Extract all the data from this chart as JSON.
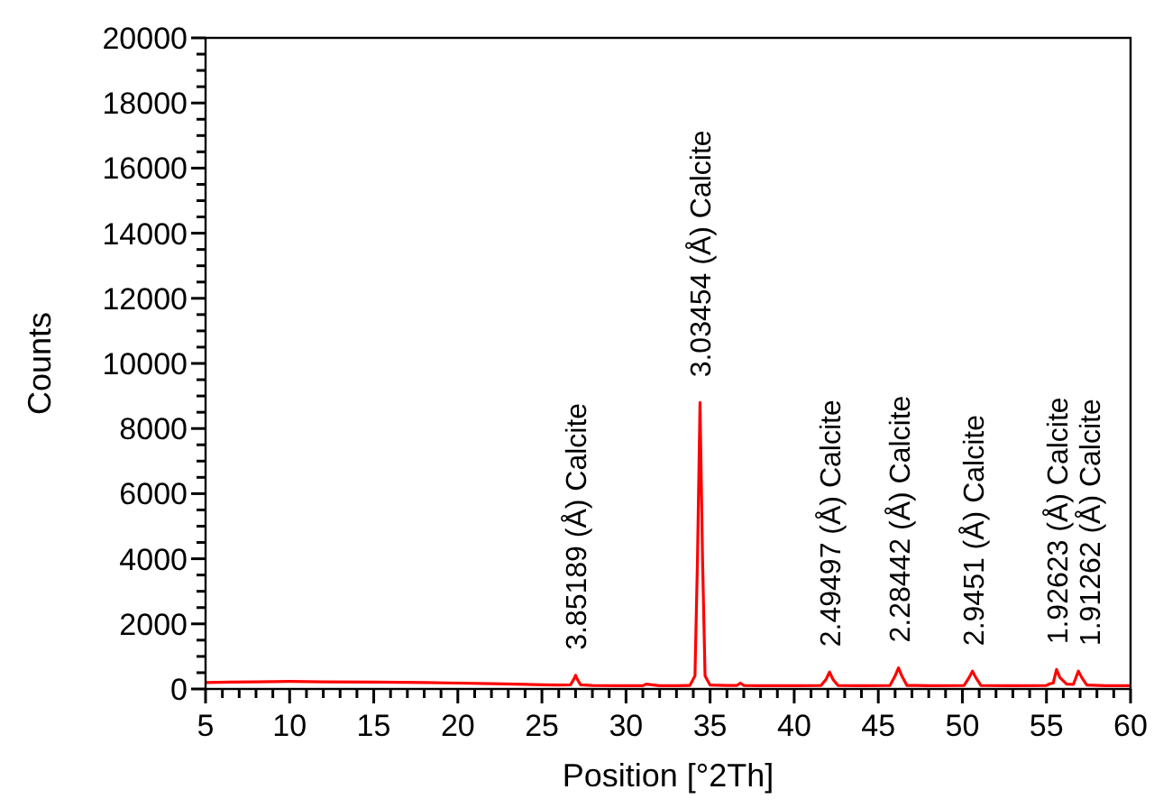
{
  "chart_data": {
    "type": "line",
    "xlabel": "Position [°2Th]",
    "ylabel": "Counts",
    "xlim": [
      5,
      60
    ],
    "ylim": [
      0,
      20000
    ],
    "xticks": [
      5,
      {
        "value": 6,
        "label": null
      },
      {
        "value": 7,
        "label": null
      },
      {
        "value": 8,
        "label": null
      },
      {
        "value": 9,
        "label": null
      },
      10,
      {
        "value": 11,
        "label": null
      },
      {
        "value": 12,
        "label": null
      },
      {
        "value": 13,
        "label": null
      },
      {
        "value": 14,
        "label": null
      },
      15,
      {
        "value": 16,
        "label": null
      },
      {
        "value": 17,
        "label": null
      },
      {
        "value": 18,
        "label": null
      },
      {
        "value": 19,
        "label": null
      },
      20,
      {
        "value": 21,
        "label": null
      },
      {
        "value": 22,
        "label": null
      },
      {
        "value": 23,
        "label": null
      },
      {
        "value": 24,
        "label": null
      },
      25,
      {
        "value": 26,
        "label": null
      },
      {
        "value": 27,
        "label": null
      },
      {
        "value": 28,
        "label": null
      },
      {
        "value": 29,
        "label": null
      },
      30,
      {
        "value": 31,
        "label": null
      },
      {
        "value": 32,
        "label": null
      },
      {
        "value": 33,
        "label": null
      },
      {
        "value": 34,
        "label": null
      },
      35,
      {
        "value": 36,
        "label": null
      },
      {
        "value": 37,
        "label": null
      },
      {
        "value": 38,
        "label": null
      },
      {
        "value": 39,
        "label": null
      },
      40,
      {
        "value": 41,
        "label": null
      },
      {
        "value": 42,
        "label": null
      },
      {
        "value": 43,
        "label": null
      },
      {
        "value": 44,
        "label": null
      },
      45,
      {
        "value": 46,
        "label": null
      },
      {
        "value": 47,
        "label": null
      },
      {
        "value": 48,
        "label": null
      },
      {
        "value": 49,
        "label": null
      },
      50,
      {
        "value": 51,
        "label": null
      },
      {
        "value": 52,
        "label": null
      },
      {
        "value": 53,
        "label": null
      },
      {
        "value": 54,
        "label": null
      },
      55,
      {
        "value": 56,
        "label": null
      },
      {
        "value": 57,
        "label": null
      },
      {
        "value": 58,
        "label": null
      },
      {
        "value": 59,
        "label": null
      },
      60
    ],
    "yticks": [
      0,
      {
        "value": 500,
        "label": null
      },
      {
        "value": 1000,
        "label": null
      },
      {
        "value": 1500,
        "label": null
      },
      2000,
      {
        "value": 2500,
        "label": null
      },
      {
        "value": 3000,
        "label": null
      },
      {
        "value": 3500,
        "label": null
      },
      4000,
      {
        "value": 4500,
        "label": null
      },
      {
        "value": 5000,
        "label": null
      },
      {
        "value": 5500,
        "label": null
      },
      6000,
      {
        "value": 6500,
        "label": null
      },
      {
        "value": 7000,
        "label": null
      },
      {
        "value": 7500,
        "label": null
      },
      8000,
      {
        "value": 8500,
        "label": null
      },
      {
        "value": 9000,
        "label": null
      },
      {
        "value": 9500,
        "label": null
      },
      10000,
      {
        "value": 10500,
        "label": null
      },
      {
        "value": 11000,
        "label": null
      },
      {
        "value": 11500,
        "label": null
      },
      12000,
      {
        "value": 12500,
        "label": null
      },
      {
        "value": 13000,
        "label": null
      },
      {
        "value": 13500,
        "label": null
      },
      14000,
      {
        "value": 14500,
        "label": null
      },
      {
        "value": 15000,
        "label": null
      },
      {
        "value": 15500,
        "label": null
      },
      16000,
      {
        "value": 16500,
        "label": null
      },
      {
        "value": 17000,
        "label": null
      },
      {
        "value": 17500,
        "label": null
      },
      18000,
      {
        "value": 18500,
        "label": null
      },
      {
        "value": 19000,
        "label": null
      },
      {
        "value": 19500,
        "label": null
      },
      20000
    ],
    "grid": false,
    "marker": "none",
    "line_style": "solid",
    "annotations": [
      {
        "text": "3.85189 (Å) Calcite",
        "x": 27.0,
        "y": 420
      },
      {
        "text": "3.03454 (Å) Calcite",
        "x": 34.4,
        "y": 8800
      },
      {
        "text": "2.49497 (Å) Calcite",
        "x": 42.1,
        "y": 520
      },
      {
        "text": "2.28442 (Å) Calcite",
        "x": 46.2,
        "y": 650
      },
      {
        "text": "2.9451 (Å) Calcite",
        "x": 50.6,
        "y": 550
      },
      {
        "text": "1.92623 (Å) Calcite",
        "x": 55.6,
        "y": 600
      },
      {
        "text": "1.91262 (Å) Calcite",
        "x": 56.9,
        "y": 550
      }
    ],
    "series": [
      {
        "color": "#ff0000",
        "x": [
          5,
          8,
          10,
          12,
          15,
          18,
          20,
          22,
          24,
          25,
          26,
          26.7,
          26.9,
          27.0,
          27.1,
          27.3,
          28,
          30,
          31,
          31.2,
          32,
          33,
          33.8,
          34.1,
          34.25,
          34.4,
          34.55,
          34.7,
          35,
          36,
          36.6,
          36.8,
          37,
          38,
          40,
          41.6,
          41.9,
          42.1,
          42.3,
          42.6,
          44,
          45.7,
          46.0,
          46.2,
          46.4,
          46.7,
          48,
          50.1,
          50.4,
          50.6,
          50.8,
          51.1,
          53,
          55.0,
          55.2,
          55.4,
          55.6,
          55.8,
          56.2,
          56.6,
          56.9,
          57.1,
          57.4,
          58.5,
          60
        ],
        "values": [
          200,
          220,
          230,
          220,
          210,
          200,
          180,
          160,
          140,
          130,
          120,
          130,
          300,
          420,
          300,
          130,
          110,
          100,
          100,
          150,
          100,
          100,
          110,
          400,
          4000,
          8800,
          4000,
          400,
          120,
          110,
          110,
          180,
          110,
          100,
          100,
          110,
          300,
          520,
          300,
          110,
          100,
          110,
          400,
          650,
          400,
          110,
          100,
          110,
          350,
          550,
          350,
          110,
          100,
          110,
          160,
          180,
          600,
          350,
          150,
          140,
          550,
          350,
          120,
          100,
          100
        ]
      }
    ]
  }
}
